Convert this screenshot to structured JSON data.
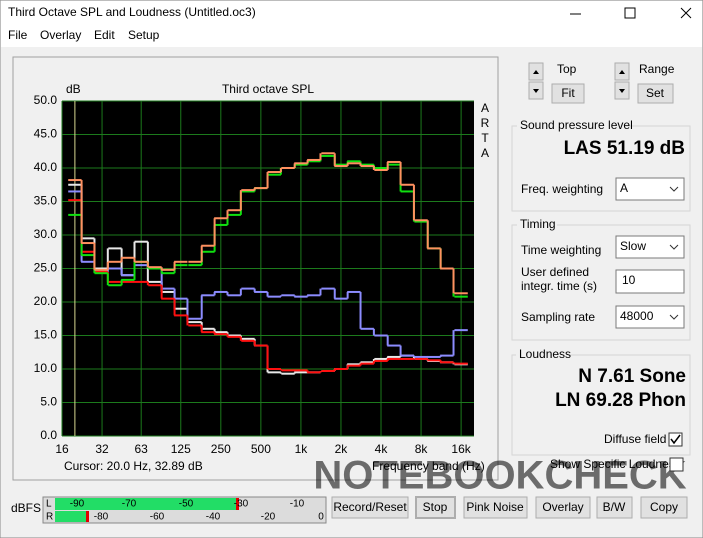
{
  "window": {
    "title": "Third Octave SPL and Loudness (Untitled.oc3)"
  },
  "menu": [
    "File",
    "Overlay",
    "Edit",
    "Setup"
  ],
  "chart_data": {
    "type": "line",
    "step": true,
    "title": "Third octave SPL",
    "y_label": "dB",
    "x_label": "Frequency band (Hz)",
    "side_label": "ARTA",
    "annotation": "Cursor:   20.0 Hz, 32.89 dB",
    "cursor": 20,
    "x": [
      20,
      25,
      31.5,
      40,
      50,
      63,
      80,
      100,
      125,
      160,
      200,
      250,
      315,
      400,
      500,
      630,
      800,
      1000,
      1250,
      1600,
      2000,
      2500,
      3150,
      4000,
      5000,
      6300,
      8000,
      10000,
      12500,
      16000
    ],
    "series": [
      {
        "color": "#e8e8e8",
        "values": [
          37.5,
          29.5,
          25,
          28,
          24,
          29,
          23,
          21.5,
          19,
          17,
          16,
          15.5,
          15,
          14.5,
          13.5,
          9.5,
          9.3,
          9.5,
          9.5,
          9.7,
          10,
          10.7,
          11,
          11.5,
          11.8,
          12,
          11.5,
          11.2,
          11,
          10.7
        ]
      },
      {
        "color": "#8c8cff",
        "values": [
          36.5,
          26,
          24.5,
          25,
          24,
          25.5,
          25,
          22,
          20.5,
          17.5,
          21,
          21.5,
          21,
          22,
          21.5,
          20.8,
          21,
          20.8,
          21,
          22,
          20.5,
          21.5,
          16,
          15,
          13.5,
          12,
          11.8,
          11.8,
          12,
          15.8
        ]
      },
      {
        "color": "#ff1010",
        "values": [
          35.2,
          27.5,
          24.5,
          23,
          23,
          23,
          22.5,
          20.5,
          18,
          16.5,
          15.5,
          15.2,
          14.8,
          14.2,
          13.5,
          10,
          9.8,
          9.8,
          9.5,
          9.7,
          10,
          10.5,
          10.8,
          11.2,
          11.5,
          11.5,
          11.5,
          11.3,
          11,
          10.8
        ]
      },
      {
        "color": "#10e010",
        "values": [
          33,
          27,
          24.3,
          22.5,
          23.3,
          26,
          25,
          24.3,
          25.5,
          25.5,
          27.5,
          31.5,
          33,
          36.5,
          37,
          39,
          40,
          40.5,
          41,
          41.8,
          40.5,
          41,
          40.5,
          40,
          40.5,
          36.5,
          32,
          28,
          25,
          20.8
        ]
      },
      {
        "color": "#ff9060",
        "values": [
          38.2,
          28.8,
          24.8,
          26,
          26.6,
          26,
          25.2,
          24.8,
          26,
          26,
          28.4,
          32.5,
          33.7,
          36.7,
          37,
          39.4,
          40,
          40.7,
          41.2,
          42.2,
          40.3,
          40.7,
          40.3,
          39.7,
          40.9,
          37.5,
          32.2,
          28,
          25,
          21.3
        ]
      }
    ],
    "xscale": "log",
    "xlim": [
      16,
      20000
    ],
    "xticks": [
      16,
      32,
      63,
      125,
      250,
      500,
      {
        "value": 1000,
        "label": "1k"
      },
      {
        "value": 2000,
        "label": "2k"
      },
      {
        "value": 4000,
        "label": "4k"
      },
      {
        "value": 8000,
        "label": "8k"
      },
      {
        "value": 16000,
        "label": "16k"
      }
    ],
    "ylim": [
      0,
      50
    ],
    "yticks": [
      {
        "value": 0,
        "label": "0.0"
      },
      {
        "value": 5,
        "label": "5.0"
      },
      {
        "value": 10,
        "label": "10.0"
      },
      {
        "value": 15,
        "label": "15.0"
      },
      {
        "value": 20,
        "label": "20.0"
      },
      {
        "value": 25,
        "label": "25.0"
      },
      {
        "value": 30,
        "label": "30.0"
      },
      {
        "value": 35,
        "label": "35.0"
      },
      {
        "value": 40,
        "label": "40.0"
      },
      {
        "value": 45,
        "label": "45.0"
      },
      {
        "value": 50,
        "label": "50.0"
      }
    ],
    "grid": true
  },
  "watermark": "NOTEBOOKCHECK",
  "display": {
    "top_label": "Top",
    "fit": "Fit",
    "range_label": "Range",
    "set": "Set"
  },
  "spl": {
    "title": "Sound pressure level",
    "reading": "LAS 51.19 dB",
    "freq_weighting_label": "Freq. weighting",
    "freq_weighting": "A"
  },
  "timing": {
    "title": "Timing",
    "time_weighting_label": "Time weighting",
    "time_weighting": "Slow",
    "integr_label": [
      "User defined",
      "integr. time (s)"
    ],
    "integr_time": "10",
    "sampling_rate_label": "Sampling rate",
    "sampling_rate": "48000"
  },
  "loudness": {
    "title": "Loudness",
    "n": "N 7.61 Sone",
    "ln": "LN 69.28 Phon",
    "diffuse_field": "Diffuse field",
    "show_specific": "Show Specific Loudness"
  },
  "meter": {
    "unit": "dBFS",
    "channels": [
      "L",
      "R"
    ],
    "l_scale": [
      "-90",
      "-70",
      "-50",
      "-30",
      "-10"
    ],
    "r_scale": [
      "-80",
      "-60",
      "-40",
      "-20",
      "0"
    ]
  },
  "buttons": [
    "Record/Reset",
    "Stop",
    "Pink Noise",
    "Overlay",
    "B/W",
    "Copy"
  ]
}
